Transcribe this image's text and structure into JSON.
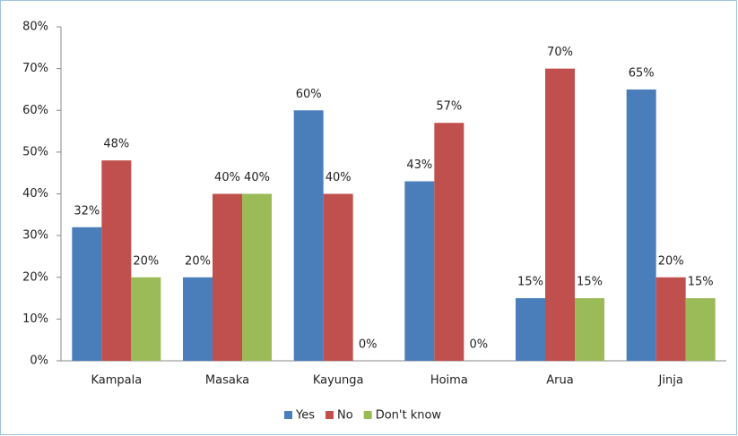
{
  "chart_data": {
    "type": "bar",
    "categories": [
      "Kampala",
      "Masaka",
      "Kayunga",
      "Hoima",
      "Arua",
      "Jinja"
    ],
    "series": [
      {
        "name": "Yes",
        "color": "#4a7ebb",
        "values": [
          32,
          20,
          60,
          43,
          15,
          65
        ],
        "value_labels": [
          "32%",
          "20%",
          "60%",
          "43%",
          "15%",
          "65%"
        ]
      },
      {
        "name": "No",
        "color": "#c0504d",
        "values": [
          48,
          40,
          40,
          57,
          70,
          20
        ],
        "value_labels": [
          "48%",
          "40%",
          "40%",
          "57%",
          "70%",
          "20%"
        ]
      },
      {
        "name": "Don't know",
        "color": "#9bbb59",
        "values": [
          20,
          40,
          0,
          0,
          15,
          15
        ],
        "value_labels": [
          "20%",
          "40%",
          "0%",
          "0%",
          "15%",
          "15%"
        ]
      }
    ],
    "ylim": [
      0,
      80
    ],
    "yticks": [
      {
        "value": 0,
        "label": "0%"
      },
      {
        "value": 10,
        "label": "10%"
      },
      {
        "value": 20,
        "label": "20%"
      },
      {
        "value": 30,
        "label": "30%"
      },
      {
        "value": 40,
        "label": "40%"
      },
      {
        "value": 50,
        "label": "50%"
      },
      {
        "value": 60,
        "label": "60%"
      },
      {
        "value": 70,
        "label": "70%"
      },
      {
        "value": 80,
        "label": "80%"
      }
    ],
    "grid": false,
    "legend": "bottom"
  }
}
